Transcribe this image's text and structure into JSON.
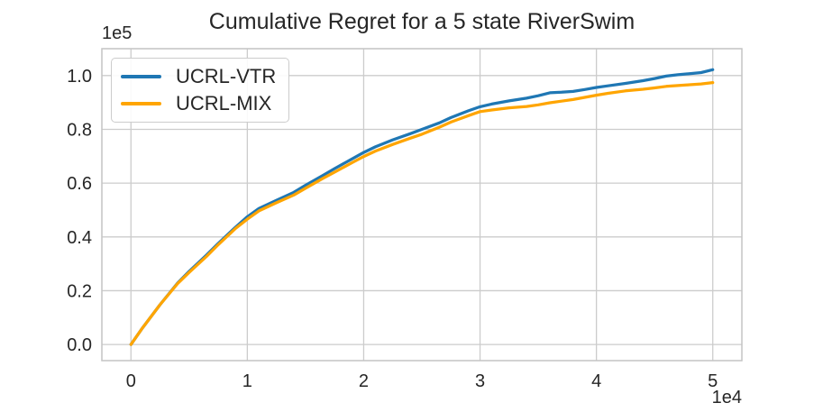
{
  "chart_data": {
    "type": "line",
    "title": "Cumulative Regret for a 5 state RiverSwim",
    "xlabel": "",
    "ylabel": "",
    "x_offset_label": "1e4",
    "y_offset_label": "1e5",
    "x_scale_factor": 10000,
    "y_scale_factor": 100000,
    "xlim": [
      -0.25,
      5.25
    ],
    "ylim": [
      -0.06,
      1.1
    ],
    "x_ticks": [
      0,
      1,
      2,
      3,
      4,
      5
    ],
    "x_tick_labels": [
      "0",
      "1",
      "2",
      "3",
      "4",
      "5"
    ],
    "y_ticks": [
      0.0,
      0.2,
      0.4,
      0.6,
      0.8,
      1.0
    ],
    "y_tick_labels": [
      "0.0",
      "0.2",
      "0.4",
      "0.6",
      "0.8",
      "1.0"
    ],
    "grid": true,
    "background": "#ffffff",
    "grid_color": "#cccccc",
    "legend_position": "upper left",
    "x": [
      0,
      0.1,
      0.25,
      0.4,
      0.5,
      0.65,
      0.75,
      0.9,
      1.0,
      1.1,
      1.25,
      1.4,
      1.5,
      1.65,
      1.75,
      1.9,
      2.0,
      2.1,
      2.25,
      2.4,
      2.5,
      2.65,
      2.75,
      2.9,
      3.0,
      3.1,
      3.25,
      3.4,
      3.5,
      3.6,
      3.7,
      3.8,
      3.9,
      4.0,
      4.1,
      4.25,
      4.4,
      4.5,
      4.6,
      4.7,
      4.8,
      4.9,
      5.0
    ],
    "series": [
      {
        "name": "UCRL-VTR",
        "color": "#1f77b4",
        "y": [
          0,
          0.062,
          0.148,
          0.228,
          0.272,
          0.333,
          0.376,
          0.437,
          0.475,
          0.506,
          0.536,
          0.566,
          0.592,
          0.629,
          0.654,
          0.69,
          0.714,
          0.735,
          0.761,
          0.784,
          0.8,
          0.824,
          0.844,
          0.869,
          0.884,
          0.894,
          0.906,
          0.916,
          0.925,
          0.936,
          0.938,
          0.941,
          0.948,
          0.956,
          0.962,
          0.971,
          0.981,
          0.989,
          0.998,
          1.003,
          1.007,
          1.011,
          1.022
        ]
      },
      {
        "name": "UCRL-MIX",
        "color": "#ffa500",
        "y": [
          0,
          0.062,
          0.148,
          0.226,
          0.268,
          0.328,
          0.371,
          0.432,
          0.466,
          0.497,
          0.527,
          0.556,
          0.581,
          0.618,
          0.641,
          0.676,
          0.699,
          0.719,
          0.744,
          0.767,
          0.782,
          0.808,
          0.827,
          0.851,
          0.866,
          0.872,
          0.88,
          0.885,
          0.891,
          0.899,
          0.905,
          0.911,
          0.919,
          0.927,
          0.934,
          0.943,
          0.949,
          0.954,
          0.96,
          0.963,
          0.966,
          0.969,
          0.974
        ]
      }
    ]
  }
}
